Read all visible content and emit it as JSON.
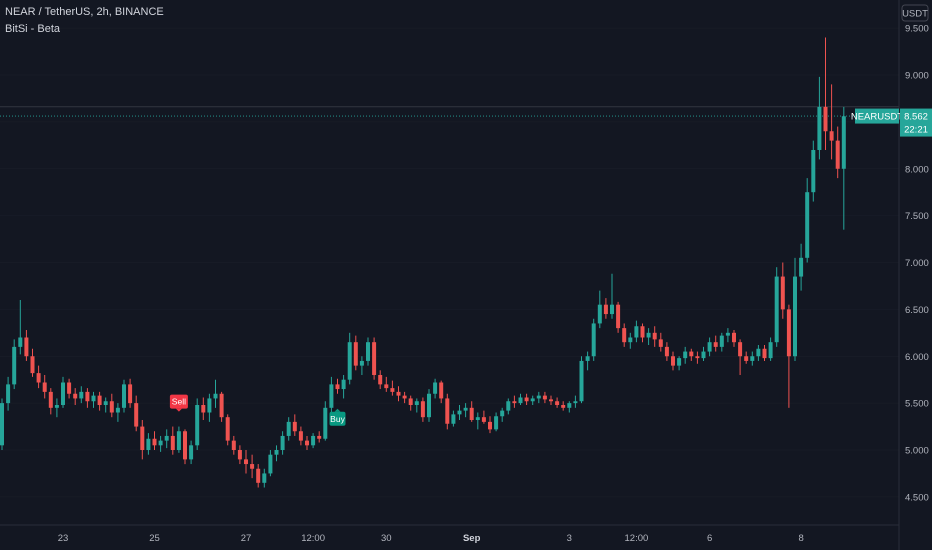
{
  "header": {
    "symbol_line": "NEAR / TetherUS, 2h, BINANCE",
    "indicator": "BitSi - Beta"
  },
  "currency_button": "USDT",
  "price_label": {
    "symbol": "NEARUSDT",
    "price": "8.562",
    "countdown": "22:21"
  },
  "signals": [
    {
      "label": "Sell",
      "color": "#f23645",
      "x_index": 29
    },
    {
      "label": "Buy",
      "color": "#089981",
      "x_index": 55
    }
  ],
  "colors": {
    "up": "#26a69a",
    "down": "#ef5350",
    "background": "#131722",
    "grid": "#2a2e39"
  },
  "chart_data": {
    "type": "candlestick",
    "y_axis": {
      "min": 4.2,
      "max": 9.8,
      "ticks": [
        "4.500",
        "5.000",
        "5.500",
        "6.000",
        "6.500",
        "7.000",
        "7.500",
        "8.000",
        "8.500",
        "9.000",
        "9.500"
      ]
    },
    "x_ticks": [
      {
        "label": "23",
        "index": 10,
        "bold": false
      },
      {
        "label": "25",
        "index": 25,
        "bold": false
      },
      {
        "label": "27",
        "index": 40,
        "bold": false
      },
      {
        "label": "12:00",
        "index": 51,
        "bold": false
      },
      {
        "label": "30",
        "index": 63,
        "bold": false
      },
      {
        "label": "Sep",
        "index": 77,
        "bold": true
      },
      {
        "label": "3",
        "index": 93,
        "bold": false
      },
      {
        "label": "12:00",
        "index": 104,
        "bold": false
      },
      {
        "label": "6",
        "index": 116,
        "bold": false
      },
      {
        "label": "8",
        "index": 131,
        "bold": false
      }
    ],
    "last_price": 8.562,
    "high_line": 8.66,
    "candles": [
      [
        5.05,
        5.55,
        5.0,
        5.5
      ],
      [
        5.5,
        5.78,
        5.42,
        5.7
      ],
      [
        5.7,
        6.18,
        5.65,
        6.1
      ],
      [
        6.1,
        6.6,
        6.02,
        6.2
      ],
      [
        6.2,
        6.28,
        5.95,
        6.0
      ],
      [
        6.0,
        6.08,
        5.78,
        5.82
      ],
      [
        5.82,
        5.9,
        5.66,
        5.72
      ],
      [
        5.72,
        5.8,
        5.55,
        5.62
      ],
      [
        5.62,
        5.66,
        5.38,
        5.45
      ],
      [
        5.45,
        5.55,
        5.35,
        5.48
      ],
      [
        5.48,
        5.78,
        5.45,
        5.72
      ],
      [
        5.72,
        5.76,
        5.55,
        5.6
      ],
      [
        5.6,
        5.66,
        5.48,
        5.55
      ],
      [
        5.55,
        5.68,
        5.5,
        5.62
      ],
      [
        5.62,
        5.66,
        5.45,
        5.52
      ],
      [
        5.52,
        5.62,
        5.45,
        5.58
      ],
      [
        5.58,
        5.62,
        5.42,
        5.48
      ],
      [
        5.48,
        5.56,
        5.4,
        5.52
      ],
      [
        5.52,
        5.6,
        5.35,
        5.4
      ],
      [
        5.4,
        5.5,
        5.3,
        5.45
      ],
      [
        5.45,
        5.75,
        5.4,
        5.7
      ],
      [
        5.7,
        5.76,
        5.45,
        5.5
      ],
      [
        5.5,
        5.58,
        5.2,
        5.25
      ],
      [
        5.25,
        5.32,
        4.9,
        5.0
      ],
      [
        5.0,
        5.18,
        4.95,
        5.12
      ],
      [
        5.12,
        5.2,
        5.0,
        5.05
      ],
      [
        5.05,
        5.15,
        4.98,
        5.1
      ],
      [
        5.1,
        5.22,
        5.02,
        5.15
      ],
      [
        5.15,
        5.25,
        4.95,
        5.0
      ],
      [
        5.0,
        5.25,
        4.97,
        5.2
      ],
      [
        5.2,
        5.22,
        4.85,
        4.9
      ],
      [
        4.9,
        5.1,
        4.85,
        5.05
      ],
      [
        5.05,
        5.55,
        5.0,
        5.48
      ],
      [
        5.48,
        5.56,
        5.32,
        5.4
      ],
      [
        5.4,
        5.6,
        5.3,
        5.55
      ],
      [
        5.55,
        5.75,
        5.45,
        5.6
      ],
      [
        5.6,
        5.62,
        5.3,
        5.35
      ],
      [
        5.35,
        5.38,
        5.05,
        5.1
      ],
      [
        5.1,
        5.15,
        4.95,
        5.0
      ],
      [
        5.0,
        5.05,
        4.85,
        4.9
      ],
      [
        4.9,
        5.0,
        4.75,
        4.85
      ],
      [
        4.85,
        4.95,
        4.7,
        4.8
      ],
      [
        4.8,
        4.85,
        4.6,
        4.65
      ],
      [
        4.65,
        4.8,
        4.6,
        4.75
      ],
      [
        4.75,
        5.0,
        4.72,
        4.95
      ],
      [
        4.95,
        5.05,
        4.88,
        5.0
      ],
      [
        5.0,
        5.2,
        4.95,
        5.15
      ],
      [
        5.15,
        5.35,
        5.1,
        5.3
      ],
      [
        5.3,
        5.38,
        5.15,
        5.2
      ],
      [
        5.2,
        5.25,
        5.05,
        5.1
      ],
      [
        5.1,
        5.15,
        5.0,
        5.05
      ],
      [
        5.05,
        5.18,
        5.02,
        5.15
      ],
      [
        5.15,
        5.2,
        5.08,
        5.12
      ],
      [
        5.12,
        5.52,
        5.1,
        5.45
      ],
      [
        5.45,
        5.78,
        5.4,
        5.7
      ],
      [
        5.7,
        5.76,
        5.6,
        5.65
      ],
      [
        5.65,
        5.8,
        5.55,
        5.75
      ],
      [
        5.75,
        6.25,
        5.7,
        6.15
      ],
      [
        6.15,
        6.22,
        5.85,
        5.9
      ],
      [
        5.9,
        6.0,
        5.8,
        5.95
      ],
      [
        5.95,
        6.2,
        5.9,
        6.15
      ],
      [
        6.15,
        6.2,
        5.75,
        5.8
      ],
      [
        5.8,
        5.85,
        5.65,
        5.7
      ],
      [
        5.7,
        5.78,
        5.62,
        5.66
      ],
      [
        5.66,
        5.74,
        5.58,
        5.62
      ],
      [
        5.62,
        5.68,
        5.52,
        5.58
      ],
      [
        5.58,
        5.62,
        5.5,
        5.55
      ],
      [
        5.55,
        5.58,
        5.42,
        5.48
      ],
      [
        5.48,
        5.55,
        5.4,
        5.52
      ],
      [
        5.52,
        5.56,
        5.3,
        5.35
      ],
      [
        5.35,
        5.65,
        5.3,
        5.6
      ],
      [
        5.6,
        5.76,
        5.55,
        5.72
      ],
      [
        5.72,
        5.74,
        5.5,
        5.55
      ],
      [
        5.55,
        5.6,
        5.22,
        5.28
      ],
      [
        5.28,
        5.42,
        5.25,
        5.38
      ],
      [
        5.38,
        5.48,
        5.32,
        5.42
      ],
      [
        5.42,
        5.5,
        5.35,
        5.45
      ],
      [
        5.45,
        5.52,
        5.3,
        5.32
      ],
      [
        5.32,
        5.4,
        5.22,
        5.35
      ],
      [
        5.35,
        5.42,
        5.28,
        5.3
      ],
      [
        5.3,
        5.36,
        5.18,
        5.22
      ],
      [
        5.22,
        5.4,
        5.2,
        5.36
      ],
      [
        5.36,
        5.45,
        5.3,
        5.42
      ],
      [
        5.42,
        5.55,
        5.38,
        5.52
      ],
      [
        5.52,
        5.58,
        5.45,
        5.5
      ],
      [
        5.5,
        5.6,
        5.48,
        5.56
      ],
      [
        5.56,
        5.6,
        5.48,
        5.52
      ],
      [
        5.52,
        5.58,
        5.48,
        5.55
      ],
      [
        5.55,
        5.62,
        5.5,
        5.58
      ],
      [
        5.58,
        5.62,
        5.5,
        5.54
      ],
      [
        5.54,
        5.58,
        5.48,
        5.52
      ],
      [
        5.52,
        5.56,
        5.45,
        5.48
      ],
      [
        5.48,
        5.52,
        5.42,
        5.45
      ],
      [
        5.45,
        5.52,
        5.4,
        5.5
      ],
      [
        5.5,
        5.58,
        5.45,
        5.52
      ],
      [
        5.52,
        6.0,
        5.5,
        5.95
      ],
      [
        5.95,
        6.05,
        5.85,
        6.0
      ],
      [
        6.0,
        6.4,
        5.95,
        6.35
      ],
      [
        6.35,
        6.7,
        6.3,
        6.55
      ],
      [
        6.55,
        6.62,
        6.4,
        6.45
      ],
      [
        6.45,
        6.88,
        6.4,
        6.55
      ],
      [
        6.55,
        6.58,
        6.25,
        6.3
      ],
      [
        6.3,
        6.35,
        6.1,
        6.15
      ],
      [
        6.15,
        6.25,
        6.08,
        6.2
      ],
      [
        6.2,
        6.38,
        6.15,
        6.32
      ],
      [
        6.32,
        6.35,
        6.15,
        6.2
      ],
      [
        6.2,
        6.3,
        6.12,
        6.25
      ],
      [
        6.25,
        6.32,
        6.1,
        6.18
      ],
      [
        6.18,
        6.25,
        6.05,
        6.1
      ],
      [
        6.1,
        6.15,
        5.95,
        6.0
      ],
      [
        6.0,
        6.05,
        5.85,
        5.9
      ],
      [
        5.9,
        6.0,
        5.85,
        5.98
      ],
      [
        5.98,
        6.1,
        5.92,
        6.05
      ],
      [
        6.05,
        6.08,
        5.95,
        6.0
      ],
      [
        6.0,
        6.05,
        5.92,
        5.98
      ],
      [
        5.98,
        6.1,
        5.95,
        6.05
      ],
      [
        6.05,
        6.2,
        6.0,
        6.15
      ],
      [
        6.15,
        6.22,
        6.05,
        6.1
      ],
      [
        6.1,
        6.25,
        6.05,
        6.22
      ],
      [
        6.22,
        6.3,
        6.15,
        6.25
      ],
      [
        6.25,
        6.28,
        6.1,
        6.15
      ],
      [
        6.15,
        6.18,
        5.8,
        6.0
      ],
      [
        6.0,
        6.05,
        5.92,
        5.95
      ],
      [
        5.95,
        6.05,
        5.9,
        6.0
      ],
      [
        6.0,
        6.12,
        5.95,
        6.08
      ],
      [
        6.08,
        6.12,
        5.95,
        5.98
      ],
      [
        5.98,
        6.2,
        5.95,
        6.15
      ],
      [
        6.15,
        6.95,
        6.1,
        6.85
      ],
      [
        6.85,
        7.0,
        6.4,
        6.5
      ],
      [
        6.5,
        6.55,
        5.45,
        6.0
      ],
      [
        6.0,
        7.05,
        5.95,
        6.85
      ],
      [
        6.85,
        7.2,
        6.7,
        7.05
      ],
      [
        7.05,
        7.9,
        7.0,
        7.75
      ],
      [
        7.75,
        8.3,
        7.65,
        8.2
      ],
      [
        8.2,
        8.98,
        8.1,
        8.66
      ],
      [
        8.66,
        9.4,
        8.2,
        8.4
      ],
      [
        8.4,
        8.9,
        8.1,
        8.3
      ],
      [
        8.3,
        8.45,
        7.9,
        8.0
      ],
      [
        8.0,
        8.66,
        7.35,
        8.56
      ]
    ]
  }
}
